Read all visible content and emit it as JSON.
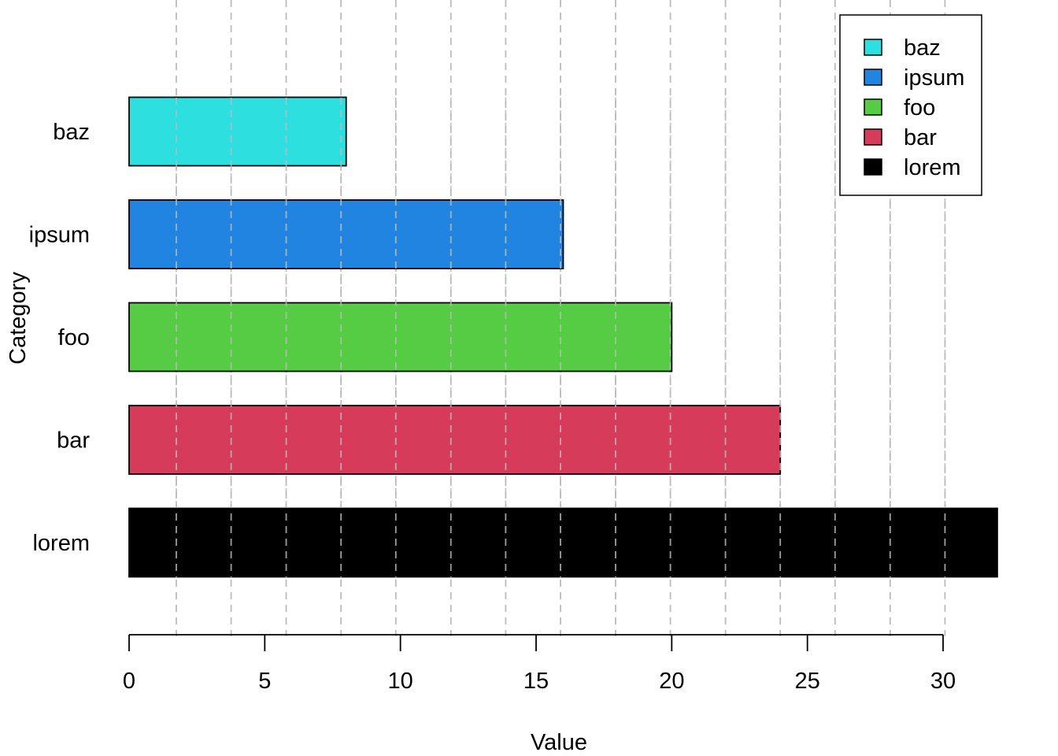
{
  "chart_data": {
    "type": "bar",
    "orientation": "horizontal",
    "categories": [
      "lorem",
      "bar",
      "foo",
      "ipsum",
      "baz"
    ],
    "values": [
      32,
      24,
      20,
      16,
      8
    ],
    "colors": [
      "#000000",
      "#D63C5A",
      "#55CC44",
      "#2284E1",
      "#2EDFDF"
    ],
    "xlabel": "Value",
    "ylabel": "Category",
    "xlim": [
      0,
      32
    ],
    "xticks": [
      "0",
      "5",
      "10",
      "15",
      "20",
      "25",
      "30"
    ],
    "xtick_values": [
      0,
      5,
      10,
      15,
      20,
      25,
      30
    ],
    "grid": {
      "orientation": "vertical",
      "style": "dashed",
      "color": "#BBBBBB",
      "values": [
        1.74,
        3.76,
        5.79,
        7.81,
        9.83,
        11.86,
        13.88,
        15.9,
        17.93,
        19.95,
        21.98,
        24.0,
        26.02,
        28.05,
        30.07
      ]
    },
    "legend": {
      "position": "top-right",
      "entries": [
        {
          "label": "baz",
          "color": "#2EDFDF"
        },
        {
          "label": "ipsum",
          "color": "#2284E1"
        },
        {
          "label": "foo",
          "color": "#55CC44"
        },
        {
          "label": "bar",
          "color": "#D63C5A"
        },
        {
          "label": "lorem",
          "color": "#000000"
        }
      ]
    }
  }
}
